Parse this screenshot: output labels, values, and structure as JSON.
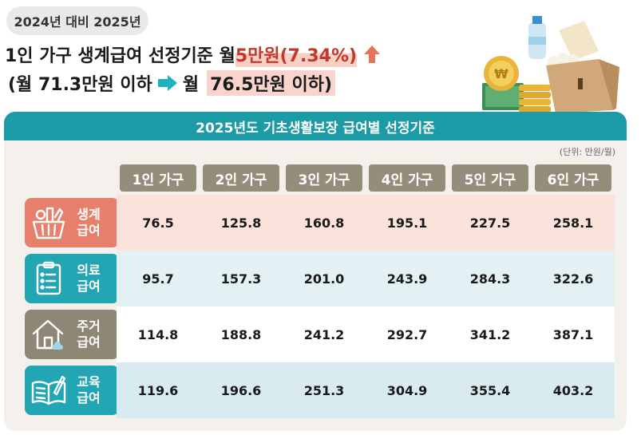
{
  "badge": "2024년 대비 2025년",
  "headline1": {
    "prefix": "1인 가구 생계급여 선정기준 월 ",
    "highlight": "5만원(7.34%)"
  },
  "headline2": {
    "open": "(월 71.3만원 이하",
    "next": "월 ",
    "highlight": "76.5만원 이하)"
  },
  "panel": {
    "title": "2025년도 기초생활보장 급여별 선정기준",
    "unit": "(단위: 만원/월)",
    "columns": [
      "1인 가구",
      "2인 가구",
      "3인 가구",
      "4인 가구",
      "5인 가구",
      "6인 가구"
    ],
    "rows": [
      {
        "label1": "생계",
        "label2": "급여",
        "icon": "grocery-basket-icon",
        "color": "#e7806b",
        "cell_color": "#fbe3dc",
        "values": [
          "76.5",
          "125.8",
          "160.8",
          "195.1",
          "227.5",
          "258.1"
        ]
      },
      {
        "label1": "의료",
        "label2": "급여",
        "icon": "medical-chart-icon",
        "color": "#23a6b3",
        "cell_color": "#e3f1f4",
        "values": [
          "95.7",
          "157.3",
          "201.0",
          "243.9",
          "284.3",
          "322.6"
        ]
      },
      {
        "label1": "주거",
        "label2": "급여",
        "icon": "house-icon",
        "color": "#8f8775",
        "cell_color": "#ffffff",
        "values": [
          "114.8",
          "188.8",
          "241.2",
          "292.7",
          "341.2",
          "387.1"
        ]
      },
      {
        "label1": "교육",
        "label2": "급여",
        "icon": "open-book-icon",
        "color": "#23a6b3",
        "cell_color": "#d9eaf0",
        "values": [
          "119.6",
          "196.6",
          "251.3",
          "304.9",
          "355.4",
          "403.2"
        ]
      }
    ]
  },
  "colors": {
    "accent_red": "#e8735c",
    "accent_teal": "#1c9aa6",
    "header_gray": "#958d7c"
  }
}
